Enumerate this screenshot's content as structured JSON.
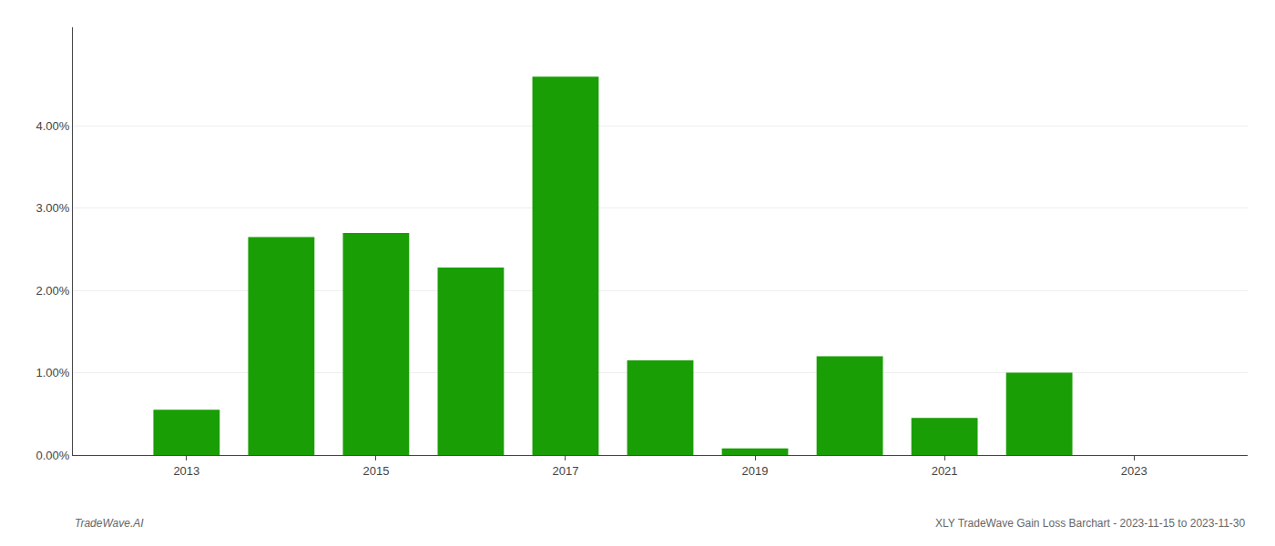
{
  "chart_data": {
    "type": "bar",
    "x": [
      2013,
      2014,
      2015,
      2016,
      2017,
      2018,
      2019,
      2020,
      2021,
      2022,
      2023
    ],
    "values": [
      0.0055,
      0.0265,
      0.027,
      0.0228,
      0.046,
      0.0115,
      0.0008,
      0.012,
      0.0045,
      0.01,
      0.0
    ],
    "color": "#1a9e06",
    "xlim": [
      2011.8,
      2024.2
    ],
    "xticks": [
      2013,
      2015,
      2017,
      2019,
      2021,
      2023
    ],
    "ylim": [
      0,
      0.052
    ],
    "yticks": [
      {
        "value": 0.0,
        "label": "0.00%"
      },
      {
        "value": 0.01,
        "label": "1.00%"
      },
      {
        "value": 0.02,
        "label": "2.00%"
      },
      {
        "value": 0.03,
        "label": "3.00%"
      },
      {
        "value": 0.04,
        "label": "4.00%"
      }
    ],
    "grid": true,
    "annotations": [
      "TradeWave.AI",
      "XLY TradeWave Gain Loss Barchart - 2023-11-15 to 2023-11-30"
    ]
  }
}
